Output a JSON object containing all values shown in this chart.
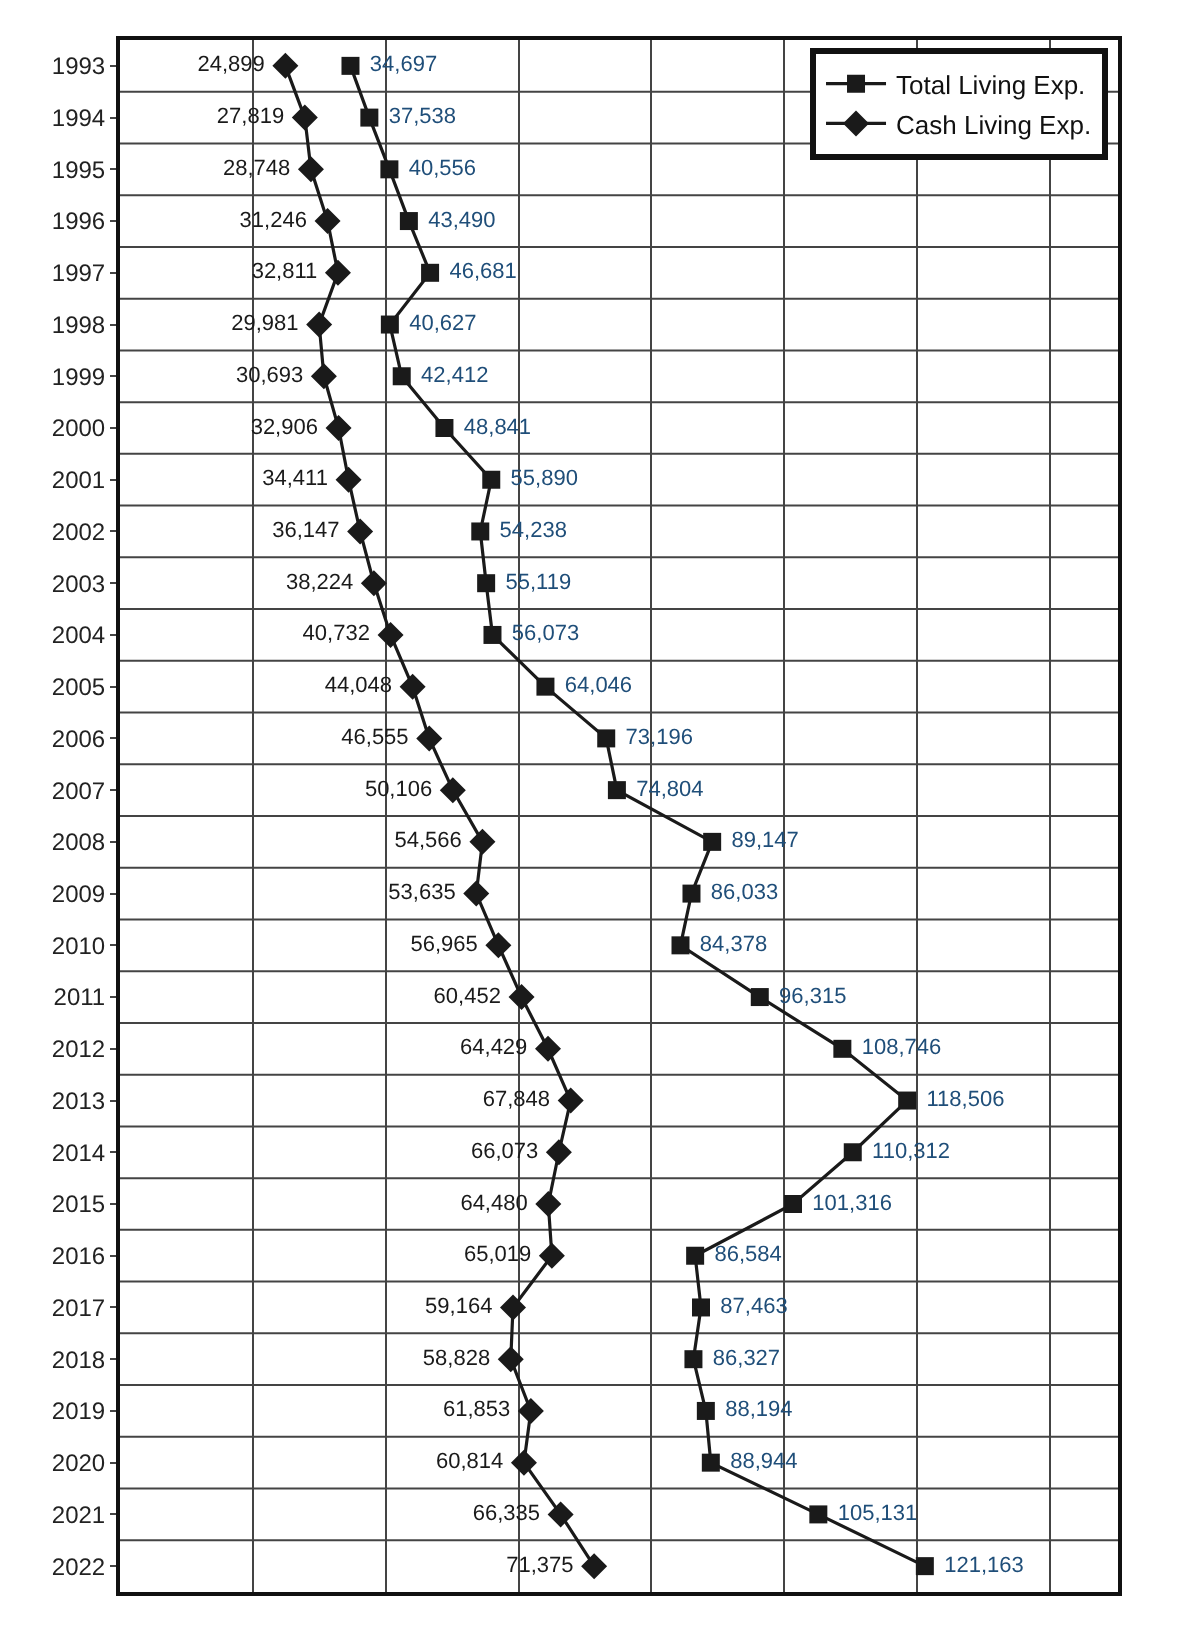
{
  "chart_data": {
    "type": "line",
    "orientation": "horizontal",
    "categories": [
      "1993",
      "1994",
      "1995",
      "1996",
      "1997",
      "1998",
      "1999",
      "2000",
      "2001",
      "2002",
      "2003",
      "2004",
      "2005",
      "2006",
      "2007",
      "2008",
      "2009",
      "2010",
      "2011",
      "2012",
      "2013",
      "2014",
      "2015",
      "2016",
      "2017",
      "2018",
      "2019",
      "2020",
      "2021",
      "2022"
    ],
    "series": [
      {
        "name": "Total Living Exp.",
        "color": "#1a1a1a",
        "marker": "square",
        "values": [
          34697,
          37538,
          40556,
          43490,
          46681,
          40627,
          42412,
          48841,
          55890,
          54238,
          55119,
          56073,
          64046,
          73196,
          74804,
          89147,
          86033,
          84378,
          96315,
          108746,
          118506,
          110312,
          101316,
          86584,
          87463,
          86327,
          88194,
          88944,
          105131,
          121163
        ],
        "value_labels": [
          "34,697",
          "37,538",
          "40,556",
          "43,490",
          "46,681",
          "40,627",
          "42,412",
          "48,841",
          "55,890",
          "54,238",
          "55,119",
          "56,073",
          "64,046",
          "73,196",
          "74,804",
          "89,147",
          "86,033",
          "84,378",
          "96,315",
          "108,746",
          "118,506",
          "110,312",
          "101,316",
          "86,584",
          "87,463",
          "86,327",
          "88,194",
          "88,944",
          "105,131",
          "121,163"
        ]
      },
      {
        "name": "Cash Living Exp.",
        "color": "#1a1a1a",
        "marker": "diamond",
        "values": [
          24899,
          27819,
          28748,
          31246,
          32811,
          29981,
          30693,
          32906,
          34411,
          36147,
          38224,
          40732,
          44048,
          46555,
          50106,
          54566,
          53635,
          56965,
          60452,
          64429,
          67848,
          66073,
          64480,
          65019,
          59164,
          58828,
          61853,
          60814,
          66335,
          71375
        ],
        "value_labels": [
          "24,899",
          "27,819",
          "28,748",
          "31,246",
          "32,811",
          "29,981",
          "30,693",
          "32,906",
          "34,411",
          "36,147",
          "38,224",
          "40,732",
          "44,048",
          "46,555",
          "50,106",
          "54,566",
          "53,635",
          "56,965",
          "60,452",
          "64,429",
          "67,848",
          "66,073",
          "64,480",
          "65,019",
          "59,164",
          "58,828",
          "61,853",
          "60,814",
          "66,335",
          "71,375"
        ]
      }
    ],
    "tick_labels": "y",
    "grid": true,
    "legend": "top right",
    "line_style": "solid"
  }
}
